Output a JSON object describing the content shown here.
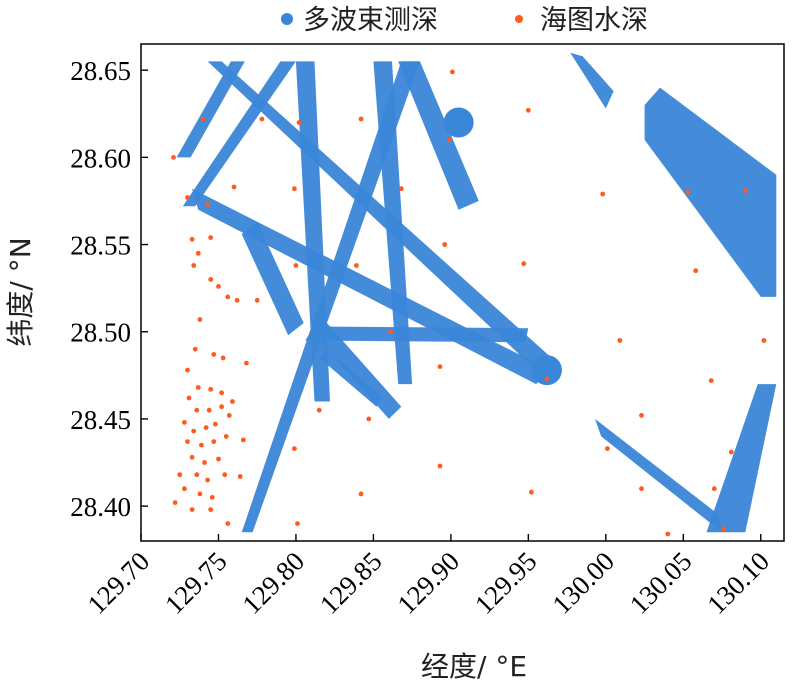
{
  "chart_data": {
    "type": "scatter",
    "xlabel": "经度/ °E",
    "ylabel": "纬度/ °N",
    "xlim": [
      129.7,
      130.115
    ],
    "ylim": [
      28.38,
      28.665
    ],
    "x_ticks": [
      "129.70",
      "129.75",
      "129.80",
      "129.85",
      "129.90",
      "129.95",
      "130.00",
      "130.05",
      "130.10"
    ],
    "y_ticks": [
      "28.40",
      "28.45",
      "28.50",
      "28.55",
      "28.60",
      "28.65"
    ],
    "legend_position": "top",
    "grid": false,
    "series": [
      {
        "name": "多波束测深",
        "color": "#3a86d8",
        "marker": "dense track swaths",
        "tracks": [
          [
            [
              129.723,
              28.6
            ],
            [
              129.758,
              28.655
            ],
            [
              129.767,
              28.655
            ],
            [
              129.732,
              28.6
            ]
          ],
          [
            [
              129.727,
              28.572
            ],
            [
              129.79,
              28.655
            ],
            [
              129.8,
              28.655
            ],
            [
              129.735,
              28.572
            ]
          ],
          [
            [
              129.765,
              28.385
            ],
            [
              129.868,
              28.655
            ],
            [
              129.88,
              28.655
            ],
            [
              129.772,
              28.385
            ]
          ],
          [
            [
              129.733,
              28.582
            ],
            [
              129.737,
              28.57
            ],
            [
              129.955,
              28.47
            ],
            [
              129.964,
              28.478
            ]
          ],
          [
            [
              129.743,
              28.655
            ],
            [
              129.752,
              28.655
            ],
            [
              129.965,
              28.485
            ],
            [
              129.955,
              28.478
            ]
          ],
          [
            [
              129.765,
              28.556
            ],
            [
              129.775,
              28.563
            ],
            [
              129.805,
              28.505
            ],
            [
              129.795,
              28.498
            ]
          ],
          [
            [
              129.8,
              28.655
            ],
            [
              129.812,
              28.655
            ],
            [
              129.822,
              28.46
            ],
            [
              129.812,
              28.46
            ]
          ],
          [
            [
              129.81,
              28.5
            ],
            [
              129.817,
              28.508
            ],
            [
              129.868,
              28.457
            ],
            [
              129.86,
              28.45
            ]
          ],
          [
            [
              129.806,
              28.495
            ],
            [
              129.812,
              28.503
            ],
            [
              129.95,
              28.502
            ],
            [
              129.948,
              28.494
            ]
          ],
          [
            [
              129.815,
              28.485
            ],
            [
              129.82,
              28.49
            ],
            [
              129.855,
              28.463
            ],
            [
              129.852,
              28.457
            ]
          ],
          [
            [
              129.85,
              28.655
            ],
            [
              129.862,
              28.655
            ],
            [
              129.875,
              28.47
            ],
            [
              129.866,
              28.47
            ]
          ],
          [
            [
              129.866,
              28.655
            ],
            [
              129.88,
              28.655
            ],
            [
              129.918,
              28.575
            ],
            [
              129.905,
              28.57
            ]
          ],
          [
            [
              129.993,
              28.45
            ],
            [
              129.997,
              28.44
            ],
            [
              130.075,
              28.385
            ],
            [
              130.073,
              28.395
            ]
          ],
          [
            [
              130.065,
              28.385
            ],
            [
              130.09,
              28.385
            ],
            [
              130.11,
              28.47
            ],
            [
              130.098,
              28.47
            ]
          ],
          [
            [
              130.025,
              28.63
            ],
            [
              130.035,
              28.64
            ],
            [
              130.11,
              28.59
            ],
            [
              130.11,
              28.52
            ],
            [
              130.1,
              28.52
            ],
            [
              130.025,
              28.61
            ]
          ],
          [
            [
              129.977,
              28.66
            ],
            [
              129.985,
              28.658
            ],
            [
              130.005,
              28.638
            ],
            [
              130.0,
              28.628
            ]
          ]
        ],
        "blobs": [
          [
            129.905,
            28.62
          ],
          [
            129.962,
            28.478
          ]
        ]
      },
      {
        "name": "海图水深",
        "color": "#ff5a1f",
        "marker": "dot",
        "points": [
          [
            129.74,
            28.622
          ],
          [
            129.778,
            28.622
          ],
          [
            129.802,
            28.62
          ],
          [
            129.842,
            28.622
          ],
          [
            129.901,
            28.649
          ],
          [
            129.95,
            28.627
          ],
          [
            129.721,
            28.6
          ],
          [
            129.899,
            28.61
          ],
          [
            129.73,
            28.577
          ],
          [
            129.743,
            28.573
          ],
          [
            129.76,
            28.583
          ],
          [
            129.799,
            28.582
          ],
          [
            129.868,
            28.582
          ],
          [
            129.998,
            28.579
          ],
          [
            130.053,
            28.58
          ],
          [
            130.09,
            28.581
          ],
          [
            129.745,
            28.554
          ],
          [
            129.896,
            28.55
          ],
          [
            129.733,
            28.553
          ],
          [
            129.737,
            28.545
          ],
          [
            129.734,
            28.538
          ],
          [
            129.8,
            28.538
          ],
          [
            129.839,
            28.538
          ],
          [
            129.947,
            28.539
          ],
          [
            130.058,
            28.535
          ],
          [
            129.745,
            28.53
          ],
          [
            129.756,
            28.52
          ],
          [
            129.75,
            28.526
          ],
          [
            129.762,
            28.518
          ],
          [
            129.775,
            28.518
          ],
          [
            129.738,
            28.507
          ],
          [
            129.861,
            28.5
          ],
          [
            130.009,
            28.495
          ],
          [
            130.102,
            28.495
          ],
          [
            129.735,
            28.49
          ],
          [
            129.747,
            28.487
          ],
          [
            129.753,
            28.485
          ],
          [
            129.73,
            28.478
          ],
          [
            129.768,
            28.482
          ],
          [
            129.893,
            28.48
          ],
          [
            129.962,
            28.473
          ],
          [
            130.068,
            28.472
          ],
          [
            129.737,
            28.468
          ],
          [
            129.745,
            28.467
          ],
          [
            129.752,
            28.465
          ],
          [
            129.731,
            28.462
          ],
          [
            129.736,
            28.455
          ],
          [
            129.744,
            28.455
          ],
          [
            129.752,
            28.457
          ],
          [
            129.759,
            28.46
          ],
          [
            129.815,
            28.455
          ],
          [
            129.728,
            28.448
          ],
          [
            129.734,
            28.443
          ],
          [
            129.742,
            28.445
          ],
          [
            129.748,
            28.447
          ],
          [
            129.757,
            28.452
          ],
          [
            129.847,
            28.45
          ],
          [
            130.023,
            28.452
          ],
          [
            129.73,
            28.437
          ],
          [
            129.739,
            28.435
          ],
          [
            129.747,
            28.437
          ],
          [
            129.755,
            28.44
          ],
          [
            129.766,
            28.438
          ],
          [
            130.001,
            28.433
          ],
          [
            130.081,
            28.431
          ],
          [
            129.733,
            28.428
          ],
          [
            129.741,
            28.425
          ],
          [
            129.75,
            28.427
          ],
          [
            129.799,
            28.433
          ],
          [
            129.725,
            28.418
          ],
          [
            129.736,
            28.418
          ],
          [
            129.743,
            28.415
          ],
          [
            129.754,
            28.418
          ],
          [
            129.764,
            28.417
          ],
          [
            129.893,
            28.423
          ],
          [
            129.728,
            28.41
          ],
          [
            129.738,
            28.407
          ],
          [
            129.746,
            28.405
          ],
          [
            129.952,
            28.408
          ],
          [
            130.023,
            28.41
          ],
          [
            130.07,
            28.41
          ],
          [
            129.722,
            28.402
          ],
          [
            129.733,
            28.398
          ],
          [
            129.745,
            28.398
          ],
          [
            129.756,
            28.39
          ],
          [
            129.801,
            28.39
          ],
          [
            129.842,
            28.407
          ],
          [
            130.04,
            28.384
          ],
          [
            130.076,
            28.387
          ]
        ]
      }
    ]
  }
}
